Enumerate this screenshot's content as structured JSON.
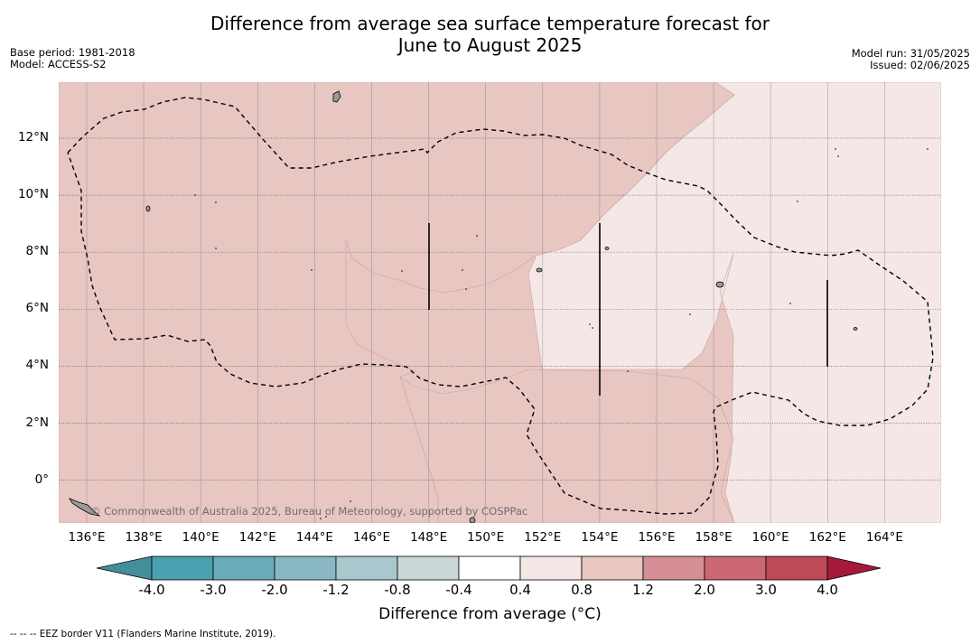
{
  "title": {
    "line1": "Difference from average sea surface temperature forecast for",
    "line2": "June to August 2025"
  },
  "meta": {
    "base_period": "Base period: 1981-2018",
    "model": "Model: ACCESS-S2",
    "model_run": "Model run: 31/05/2025",
    "issued": "Issued: 02/06/2025"
  },
  "map": {
    "lon_range": [
      135,
      166
    ],
    "lat_range": [
      -1.5,
      14
    ],
    "lon_ticks": [
      "136°E",
      "138°E",
      "140°E",
      "142°E",
      "144°E",
      "146°E",
      "148°E",
      "150°E",
      "152°E",
      "154°E",
      "156°E",
      "158°E",
      "160°E",
      "162°E",
      "164°E"
    ],
    "lat_ticks": [
      "12°N",
      "10°N",
      "8°N",
      "6°N",
      "4°N",
      "2°N",
      "0°"
    ],
    "background_class": "0.8 to 1.2",
    "light_region_class": "0.4 to 0.8",
    "credit": "© Commonwealth of Australia 2025, Bureau of Meteorology, supported by COSPPac",
    "colors": {
      "class_0_8_1_2": "#e8c6c2",
      "class_0_4_0_8": "#f4e7e6",
      "grid": "#7a7a7a",
      "eez": "#000000",
      "land": "#9a9a9a"
    }
  },
  "colorbar": {
    "label": "Difference from average (°C)",
    "ticks": [
      "-4.0",
      "-3.0",
      "-2.0",
      "-1.2",
      "-0.8",
      "-0.4",
      "0.4",
      "0.8",
      "1.2",
      "2.0",
      "3.0",
      "4.0"
    ],
    "colors": [
      "#438f99",
      "#4aa1b0",
      "#6aabb9",
      "#89b8c2",
      "#a9c8cd",
      "#cad7d8",
      "#ffffff",
      "#f4e7e6",
      "#e8c6c2",
      "#d68f96",
      "#cb6873",
      "#be4957",
      "#a51a3c"
    ]
  },
  "footnote": "-- -- -- EEZ border V11 (Flanders Marine Institute, 2019)."
}
